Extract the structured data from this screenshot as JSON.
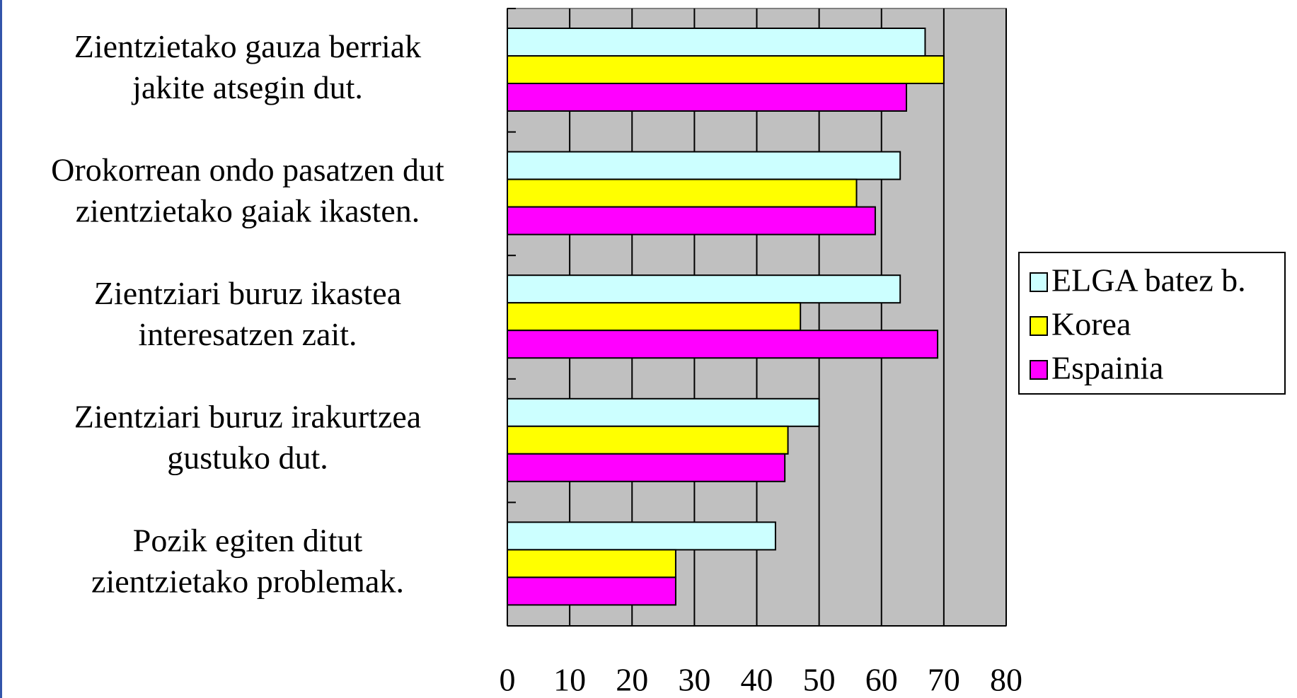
{
  "chart_data": {
    "type": "barh",
    "categories": [
      [
        "Zientzietako gauza berriak",
        "jakite atsegin dut."
      ],
      [
        "Orokorrean ondo pasatzen dut",
        "zientzietako gaiak ikasten."
      ],
      [
        "Zientziari buruz ikastea",
        "interesatzen zait."
      ],
      [
        "Zientziari buruz irakurtzea",
        "gustuko dut."
      ],
      [
        "Pozik egiten ditut",
        "zientzietako problemak."
      ]
    ],
    "series": [
      {
        "name": "ELGA batez b.",
        "color": "#ccffff",
        "values": [
          67,
          63,
          63,
          50,
          43
        ]
      },
      {
        "name": "Korea",
        "color": "#ffff00",
        "values": [
          70,
          56,
          47,
          45,
          27
        ]
      },
      {
        "name": "Espainia",
        "color": "#ff00ff",
        "values": [
          64,
          59,
          69,
          44.5,
          27
        ]
      }
    ],
    "xlim": [
      0,
      80
    ],
    "xticks": [
      0,
      10,
      20,
      30,
      40,
      50,
      60,
      70,
      80
    ],
    "grid": true,
    "background": "#c0c0c0"
  }
}
